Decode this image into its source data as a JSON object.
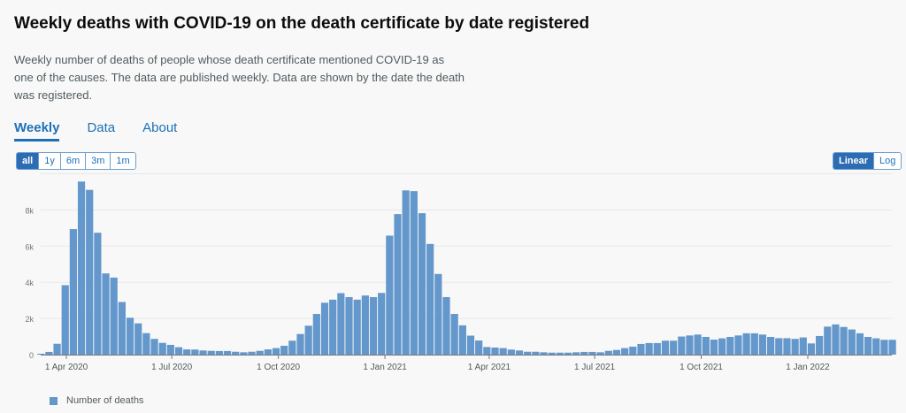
{
  "title": "Weekly deaths with COVID-19 on the death certificate by date registered",
  "description": "Weekly number of deaths of people whose death certificate mentioned COVID-19 as one of the causes. The data are published weekly. Data are shown by the date the death was registered.",
  "tabs": [
    {
      "label": "Weekly",
      "active": true
    },
    {
      "label": "Data"
    },
    {
      "label": "About"
    }
  ],
  "range_buttons": [
    {
      "label": "all",
      "selected": true
    },
    {
      "label": "1y"
    },
    {
      "label": "6m"
    },
    {
      "label": "3m"
    },
    {
      "label": "1m"
    }
  ],
  "scale_buttons": [
    {
      "label": "Linear",
      "selected": true
    },
    {
      "label": "Log"
    }
  ],
  "colors": {
    "bar": "#6497cb",
    "accent": "#1d70b8"
  },
  "chart_data": {
    "type": "bar",
    "title": "Weekly deaths with COVID-19 on the death certificate by date registered",
    "xlabel": "",
    "ylabel": "",
    "ylim": [
      0,
      10000
    ],
    "grid": true,
    "legend_placement": "bottom-left",
    "y_ticks": [
      {
        "value": 0,
        "label": "0"
      },
      {
        "value": 2000,
        "label": "2k"
      },
      {
        "value": 4000,
        "label": "4k"
      },
      {
        "value": 6000,
        "label": "6k"
      },
      {
        "value": 8000,
        "label": "8k"
      }
    ],
    "x_ticks": [
      {
        "date": "2020-04-01",
        "label": "1 Apr 2020"
      },
      {
        "date": "2020-07-01",
        "label": "1 Jul 2020"
      },
      {
        "date": "2020-10-01",
        "label": "1 Oct 2020"
      },
      {
        "date": "2021-01-01",
        "label": "1 Jan 2021"
      },
      {
        "date": "2021-04-01",
        "label": "1 Apr 2021"
      },
      {
        "date": "2021-07-01",
        "label": "1 Jul 2021"
      },
      {
        "date": "2021-10-01",
        "label": "1 Oct 2021"
      },
      {
        "date": "2022-01-01",
        "label": "1 Jan 2022"
      }
    ],
    "series": [
      {
        "name": "Number of deaths",
        "x": [
          "2020-03-13",
          "2020-03-20",
          "2020-03-27",
          "2020-04-03",
          "2020-04-10",
          "2020-04-17",
          "2020-04-24",
          "2020-05-01",
          "2020-05-08",
          "2020-05-15",
          "2020-05-22",
          "2020-05-29",
          "2020-06-05",
          "2020-06-12",
          "2020-06-19",
          "2020-06-26",
          "2020-07-03",
          "2020-07-10",
          "2020-07-17",
          "2020-07-24",
          "2020-07-31",
          "2020-08-07",
          "2020-08-14",
          "2020-08-21",
          "2020-08-28",
          "2020-09-04",
          "2020-09-11",
          "2020-09-18",
          "2020-09-25",
          "2020-10-02",
          "2020-10-09",
          "2020-10-16",
          "2020-10-23",
          "2020-10-30",
          "2020-11-06",
          "2020-11-13",
          "2020-11-20",
          "2020-11-27",
          "2020-12-04",
          "2020-12-11",
          "2020-12-18",
          "2020-12-25",
          "2021-01-01",
          "2021-01-08",
          "2021-01-15",
          "2021-01-22",
          "2021-01-29",
          "2021-02-05",
          "2021-02-12",
          "2021-02-19",
          "2021-02-26",
          "2021-03-05",
          "2021-03-12",
          "2021-03-19",
          "2021-03-26",
          "2021-04-02",
          "2021-04-09",
          "2021-04-16",
          "2021-04-23",
          "2021-04-30",
          "2021-05-07",
          "2021-05-14",
          "2021-05-21",
          "2021-05-28",
          "2021-06-04",
          "2021-06-11",
          "2021-06-18",
          "2021-06-25",
          "2021-07-02",
          "2021-07-09",
          "2021-07-16",
          "2021-07-23",
          "2021-07-30",
          "2021-08-06",
          "2021-08-13",
          "2021-08-20",
          "2021-08-27",
          "2021-09-03",
          "2021-09-10",
          "2021-09-17",
          "2021-09-24",
          "2021-10-01",
          "2021-10-08",
          "2021-10-15",
          "2021-10-22",
          "2021-10-29",
          "2021-11-05",
          "2021-11-12",
          "2021-11-19",
          "2021-11-26",
          "2021-12-03",
          "2021-12-10",
          "2021-12-17",
          "2021-12-24",
          "2021-12-31",
          "2022-01-07",
          "2022-01-14",
          "2022-01-21",
          "2022-01-28",
          "2022-02-04",
          "2022-02-11",
          "2022-02-18",
          "2022-02-25",
          "2022-03-04",
          "2022-03-11",
          "2022-03-18"
        ],
        "values": [
          50,
          150,
          600,
          3840,
          6940,
          9570,
          9110,
          6740,
          4490,
          4260,
          2910,
          2040,
          1730,
          1190,
          870,
          650,
          540,
          410,
          290,
          280,
          230,
          210,
          200,
          200,
          160,
          130,
          160,
          210,
          290,
          360,
          490,
          770,
          1140,
          1600,
          2250,
          2870,
          3040,
          3400,
          3180,
          3040,
          3270,
          3180,
          3410,
          6580,
          7770,
          9080,
          9040,
          7820,
          6120,
          4460,
          3180,
          2250,
          1620,
          1050,
          780,
          420,
          390,
          360,
          280,
          230,
          160,
          160,
          130,
          110,
          110,
          110,
          130,
          150,
          150,
          130,
          210,
          260,
          360,
          440,
          590,
          640,
          640,
          770,
          770,
          1000,
          1060,
          1110,
          980,
          830,
          900,
          980,
          1060,
          1180,
          1180,
          1110,
          980,
          910,
          910,
          870,
          950,
          620,
          1030,
          1550,
          1670,
          1530,
          1390,
          1180,
          980,
          900,
          820,
          820
        ]
      }
    ]
  }
}
